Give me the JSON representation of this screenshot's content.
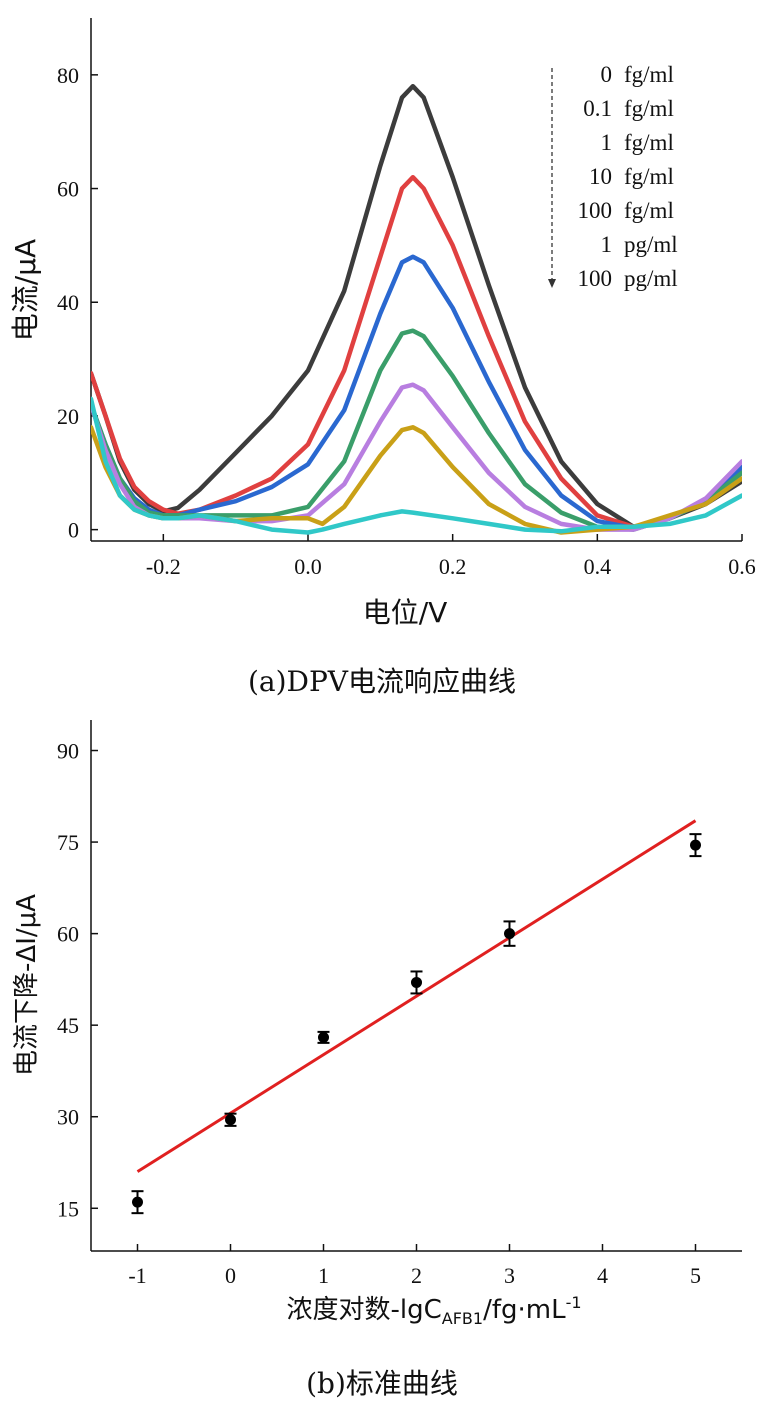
{
  "chart_data": [
    {
      "type": "line",
      "xlabel": "电位/V",
      "ylabel": "电流/μA",
      "caption": "(a)DPV电流响应曲线",
      "xlim": [
        -0.3,
        0.6
      ],
      "ylim": [
        -2,
        90
      ],
      "xticks": [
        -0.2,
        0.0,
        0.2,
        0.4,
        0.6
      ],
      "xtick_labels": [
        "-0.2",
        "0.0",
        "0.2",
        "0.4",
        "0.6"
      ],
      "yticks": [
        0,
        20,
        40,
        60,
        80
      ],
      "ytick_labels": [
        "0",
        "20",
        "40",
        "60",
        "80"
      ],
      "legend_position": "top-right",
      "legend_arrow": "dashed arrow pointing down",
      "series": [
        {
          "name": "0 fg/ml",
          "legend_num": "0",
          "legend_unit": "fg/ml",
          "color": "#3c3c3c",
          "points": [
            [
              -0.3,
              27.5
            ],
            [
              -0.28,
              20
            ],
            [
              -0.26,
              12
            ],
            [
              -0.24,
              7
            ],
            [
              -0.22,
              4.5
            ],
            [
              -0.2,
              3.2
            ],
            [
              -0.18,
              3.8
            ],
            [
              -0.15,
              7
            ],
            [
              -0.1,
              13.5
            ],
            [
              -0.05,
              20
            ],
            [
              0.0,
              28
            ],
            [
              0.05,
              42
            ],
            [
              0.1,
              64
            ],
            [
              0.13,
              76
            ],
            [
              0.145,
              78
            ],
            [
              0.16,
              76
            ],
            [
              0.2,
              62
            ],
            [
              0.25,
              43
            ],
            [
              0.3,
              25
            ],
            [
              0.35,
              12
            ],
            [
              0.4,
              4.5
            ],
            [
              0.45,
              0.5
            ],
            [
              0.5,
              2
            ],
            [
              0.55,
              4.5
            ],
            [
              0.6,
              8.5
            ]
          ]
        },
        {
          "name": "0.1 fg/ml",
          "legend_num": "0.1",
          "legend_unit": "fg/ml",
          "color": "#e04040",
          "points": [
            [
              -0.3,
              27.5
            ],
            [
              -0.28,
              20
            ],
            [
              -0.26,
              12.5
            ],
            [
              -0.24,
              7.5
            ],
            [
              -0.22,
              5
            ],
            [
              -0.2,
              3.5
            ],
            [
              -0.18,
              2.8
            ],
            [
              -0.15,
              3.5
            ],
            [
              -0.1,
              6
            ],
            [
              -0.05,
              9
            ],
            [
              0.0,
              15
            ],
            [
              0.05,
              28
            ],
            [
              0.1,
              48
            ],
            [
              0.13,
              60
            ],
            [
              0.145,
              62
            ],
            [
              0.16,
              60
            ],
            [
              0.2,
              50
            ],
            [
              0.25,
              34
            ],
            [
              0.3,
              19
            ],
            [
              0.35,
              9
            ],
            [
              0.4,
              2.5
            ],
            [
              0.45,
              0.5
            ],
            [
              0.5,
              2
            ],
            [
              0.55,
              5
            ],
            [
              0.6,
              10
            ]
          ]
        },
        {
          "name": "1 fg/ml",
          "legend_num": "1",
          "legend_unit": "fg/ml",
          "color": "#2a68d0",
          "points": [
            [
              -0.3,
              22
            ],
            [
              -0.28,
              15
            ],
            [
              -0.26,
              9
            ],
            [
              -0.24,
              5.5
            ],
            [
              -0.22,
              3.5
            ],
            [
              -0.2,
              2.5
            ],
            [
              -0.18,
              2.5
            ],
            [
              -0.15,
              3.5
            ],
            [
              -0.1,
              5
            ],
            [
              -0.05,
              7.5
            ],
            [
              0.0,
              11.5
            ],
            [
              0.05,
              21
            ],
            [
              0.1,
              38
            ],
            [
              0.13,
              47
            ],
            [
              0.145,
              48
            ],
            [
              0.16,
              47
            ],
            [
              0.2,
              39
            ],
            [
              0.25,
              26
            ],
            [
              0.3,
              14
            ],
            [
              0.35,
              6
            ],
            [
              0.4,
              1.5
            ],
            [
              0.45,
              0.3
            ],
            [
              0.5,
              2
            ],
            [
              0.55,
              5
            ],
            [
              0.6,
              11
            ]
          ]
        },
        {
          "name": "10 fg/ml",
          "legend_num": "10",
          "legend_unit": "fg/ml",
          "color": "#3a9e6a",
          "points": [
            [
              -0.3,
              22
            ],
            [
              -0.28,
              15
            ],
            [
              -0.26,
              9
            ],
            [
              -0.24,
              5
            ],
            [
              -0.22,
              3
            ],
            [
              -0.2,
              2.5
            ],
            [
              -0.18,
              2.5
            ],
            [
              -0.15,
              2.5
            ],
            [
              -0.1,
              2.5
            ],
            [
              -0.05,
              2.5
            ],
            [
              0.0,
              4
            ],
            [
              0.05,
              12
            ],
            [
              0.1,
              28
            ],
            [
              0.13,
              34.5
            ],
            [
              0.145,
              35
            ],
            [
              0.16,
              34
            ],
            [
              0.2,
              27
            ],
            [
              0.25,
              17
            ],
            [
              0.3,
              8
            ],
            [
              0.35,
              3
            ],
            [
              0.4,
              0.5
            ],
            [
              0.45,
              0
            ],
            [
              0.5,
              2
            ],
            [
              0.55,
              5
            ],
            [
              0.6,
              10
            ]
          ]
        },
        {
          "name": "100 fg/ml",
          "legend_num": "100",
          "legend_unit": "fg/ml",
          "color": "#b87ee0",
          "points": [
            [
              -0.3,
              22
            ],
            [
              -0.28,
              14
            ],
            [
              -0.26,
              8
            ],
            [
              -0.24,
              4
            ],
            [
              -0.22,
              2.5
            ],
            [
              -0.2,
              2
            ],
            [
              -0.18,
              2
            ],
            [
              -0.15,
              2
            ],
            [
              -0.1,
              1.5
            ],
            [
              -0.05,
              1.5
            ],
            [
              0.0,
              2.5
            ],
            [
              0.05,
              8
            ],
            [
              0.1,
              19
            ],
            [
              0.13,
              25
            ],
            [
              0.145,
              25.5
            ],
            [
              0.16,
              24.5
            ],
            [
              0.2,
              18
            ],
            [
              0.25,
              10
            ],
            [
              0.3,
              4
            ],
            [
              0.35,
              1
            ],
            [
              0.4,
              0
            ],
            [
              0.45,
              0
            ],
            [
              0.5,
              2
            ],
            [
              0.55,
              5.5
            ],
            [
              0.6,
              12
            ]
          ]
        },
        {
          "name": "1 pg/ml",
          "legend_num": "1",
          "legend_unit": "pg/ml",
          "color": "#c9a017",
          "points": [
            [
              -0.3,
              18
            ],
            [
              -0.28,
              11
            ],
            [
              -0.26,
              6
            ],
            [
              -0.24,
              3.5
            ],
            [
              -0.22,
              2.5
            ],
            [
              -0.2,
              2
            ],
            [
              -0.18,
              2
            ],
            [
              -0.15,
              2.5
            ],
            [
              -0.1,
              1.5
            ],
            [
              -0.05,
              2
            ],
            [
              0.0,
              2
            ],
            [
              0.02,
              1
            ],
            [
              0.05,
              4
            ],
            [
              0.1,
              13
            ],
            [
              0.13,
              17.5
            ],
            [
              0.145,
              18
            ],
            [
              0.16,
              17
            ],
            [
              0.2,
              11
            ],
            [
              0.25,
              4.5
            ],
            [
              0.3,
              1
            ],
            [
              0.35,
              -0.5
            ],
            [
              0.4,
              0
            ],
            [
              0.45,
              0.5
            ],
            [
              0.5,
              2.5
            ],
            [
              0.55,
              4.5
            ],
            [
              0.6,
              9
            ]
          ]
        },
        {
          "name": "100 pg/ml",
          "legend_num": "100",
          "legend_unit": "pg/ml",
          "color": "#30c8c8",
          "points": [
            [
              -0.3,
              23
            ],
            [
              -0.28,
              12
            ],
            [
              -0.26,
              6
            ],
            [
              -0.24,
              3.5
            ],
            [
              -0.22,
              2.5
            ],
            [
              -0.2,
              2
            ],
            [
              -0.18,
              2
            ],
            [
              -0.15,
              2.5
            ],
            [
              -0.1,
              1.5
            ],
            [
              -0.05,
              0
            ],
            [
              0.0,
              -0.5
            ],
            [
              0.02,
              0
            ],
            [
              0.05,
              1
            ],
            [
              0.1,
              2.5
            ],
            [
              0.13,
              3.2
            ],
            [
              0.145,
              3
            ],
            [
              0.2,
              2
            ],
            [
              0.25,
              1
            ],
            [
              0.3,
              0
            ],
            [
              0.35,
              -0.3
            ],
            [
              0.4,
              0.5
            ],
            [
              0.45,
              0.5
            ],
            [
              0.5,
              1
            ],
            [
              0.55,
              2.5
            ],
            [
              0.6,
              6
            ]
          ]
        }
      ]
    },
    {
      "type": "scatter",
      "xlabel": "浓度对数-lgC",
      "xlabel_sub": "AFB1",
      "xlabel_tail": "/fg·mL",
      "xlabel_sup": "-1",
      "ylabel": "电流下降-ΔI/μA",
      "caption": "(b)标准曲线",
      "xlim": [
        -1.5,
        5.5
      ],
      "ylim": [
        8,
        95
      ],
      "xticks": [
        -1,
        0,
        1,
        2,
        3,
        4,
        5
      ],
      "xtick_labels": [
        "-1",
        "0",
        "1",
        "2",
        "3",
        "4",
        "5"
      ],
      "yticks": [
        15,
        30,
        45,
        60,
        75,
        90
      ],
      "ytick_labels": [
        "15",
        "30",
        "45",
        "60",
        "75",
        "90"
      ],
      "points": [
        {
          "x": -1,
          "y": 16,
          "err": 1.8
        },
        {
          "x": 0,
          "y": 29.5,
          "err": 1.0
        },
        {
          "x": 1,
          "y": 43,
          "err": 0.9
        },
        {
          "x": 2,
          "y": 52,
          "err": 1.8
        },
        {
          "x": 3,
          "y": 60,
          "err": 2.0
        },
        {
          "x": 5,
          "y": 74.5,
          "err": 1.8
        }
      ],
      "fit_line": {
        "x": [
          -1,
          5
        ],
        "y": [
          21,
          78.5
        ],
        "color": "#e02020"
      },
      "marker_color": "#000000"
    }
  ]
}
